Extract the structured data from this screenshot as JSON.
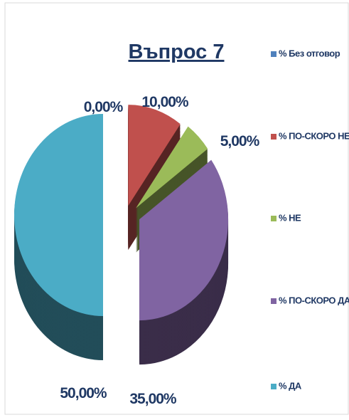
{
  "chart_data": {
    "type": "pie",
    "title": "Въпрос 7",
    "categories": [
      "% Без отговор",
      "% ПО-СКОРО НЕ",
      "% НЕ",
      "% ПО-СКОРО ДА",
      "% ДА"
    ],
    "values": [
      0,
      10,
      5,
      35,
      50
    ],
    "value_labels": [
      "0,00%",
      "10,00%",
      "5,00%",
      "35,00%",
      "50,00%"
    ],
    "colors": [
      "#4f81bd",
      "#c0504d",
      "#9bbb59",
      "#8064a2",
      "#4bacc6"
    ],
    "legend": "right"
  }
}
